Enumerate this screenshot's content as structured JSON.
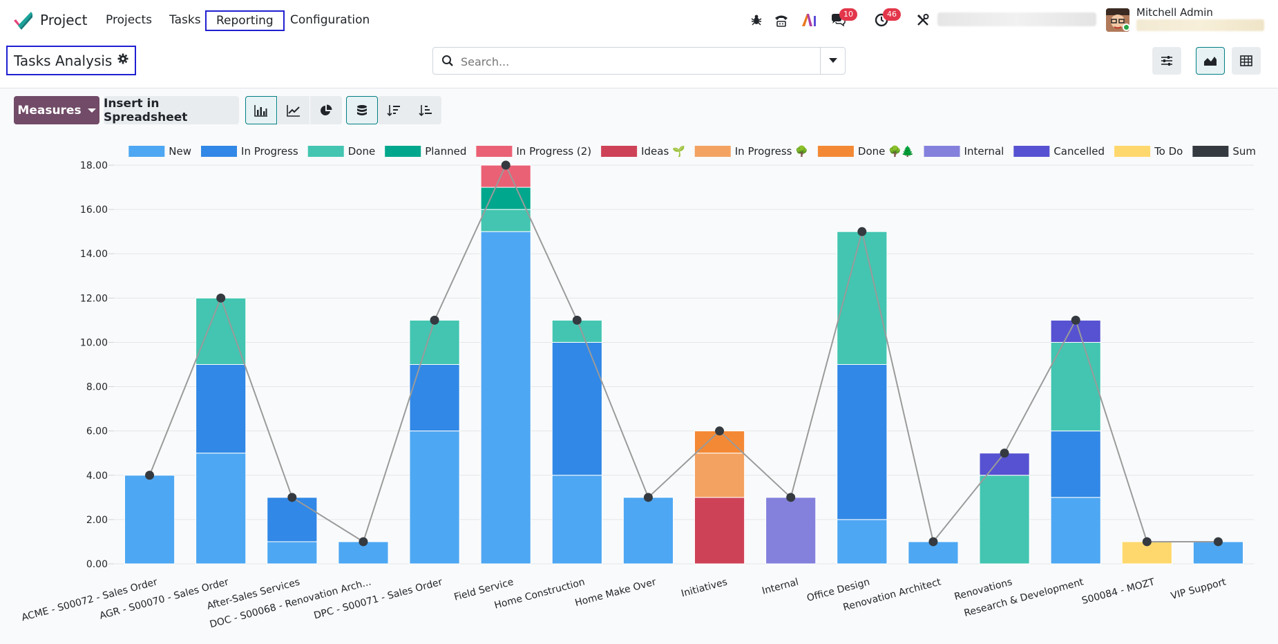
{
  "topbar": {
    "app_name": "Project",
    "menu": [
      "Projects",
      "Tasks",
      "Reporting",
      "Configuration"
    ],
    "messages_count": "10",
    "activities_count": "46",
    "user_name": "Mitchell Admin"
  },
  "control_panel": {
    "title": "Tasks Analysis",
    "search_placeholder": "Search..."
  },
  "toolbar": {
    "measures_label": "Measures",
    "spreadsheet_label": "Insert in Spreadsheet",
    "chart_modes": [
      "bar-chart-icon",
      "line-chart-icon",
      "pie-chart-icon"
    ],
    "active_mode": "bar-chart-icon",
    "stacked_active": true
  },
  "colors": {
    "accent": "#714b67",
    "active_border": "#017e84"
  },
  "chart_data": {
    "type": "bar",
    "stacked": true,
    "categories": [
      "ACME - S00072 - Sales Order",
      "AGR - S00070 - Sales Order",
      "After-Sales Services",
      "DOC - S00068 - Renovation Arch...",
      "DPC - S00071 - Sales Order",
      "Field Service",
      "Home Construction",
      "Home Make Over",
      "Initiatives",
      "Internal",
      "Office Design",
      "Renovation Architect",
      "Renovations",
      "Research & Development",
      "S00084 - MOZT",
      "VIP Support"
    ],
    "series": [
      {
        "name": "New",
        "color": "#4ea7f2",
        "values": [
          4,
          5,
          1,
          1,
          6,
          15,
          4,
          3,
          0,
          0,
          2,
          1,
          0,
          3,
          0,
          1
        ]
      },
      {
        "name": "In Progress",
        "color": "#3188e6",
        "values": [
          0,
          4,
          2,
          0,
          3,
          0,
          6,
          0,
          0,
          0,
          7,
          0,
          0,
          3,
          0,
          0
        ]
      },
      {
        "name": "Done",
        "color": "#43c5b1",
        "values": [
          0,
          3,
          0,
          0,
          2,
          1,
          1,
          0,
          0,
          0,
          6,
          0,
          4,
          4,
          0,
          0
        ]
      },
      {
        "name": "Planned",
        "color": "#00a78d",
        "values": [
          0,
          0,
          0,
          0,
          0,
          1,
          0,
          0,
          0,
          0,
          0,
          0,
          0,
          0,
          0,
          0
        ]
      },
      {
        "name": "In Progress (2)",
        "color": "#ea6175",
        "values": [
          0,
          0,
          0,
          0,
          0,
          1,
          0,
          0,
          0,
          0,
          0,
          0,
          0,
          0,
          0,
          0
        ]
      },
      {
        "name": "Ideas 🌱",
        "color": "#ce4257",
        "values": [
          0,
          0,
          0,
          0,
          0,
          0,
          0,
          0,
          3,
          0,
          0,
          0,
          0,
          0,
          0,
          0
        ]
      },
      {
        "name": "In Progress 🌳",
        "color": "#f4a261",
        "values": [
          0,
          0,
          0,
          0,
          0,
          0,
          0,
          0,
          2,
          0,
          0,
          0,
          0,
          0,
          0,
          0
        ]
      },
      {
        "name": "Done 🌳🌲",
        "color": "#f48935",
        "values": [
          0,
          0,
          0,
          0,
          0,
          0,
          0,
          0,
          1,
          0,
          0,
          0,
          0,
          0,
          0,
          0
        ]
      },
      {
        "name": "Internal",
        "color": "#8481dd",
        "values": [
          0,
          0,
          0,
          0,
          0,
          0,
          0,
          0,
          0,
          3,
          0,
          0,
          0,
          0,
          0,
          0
        ]
      },
      {
        "name": "Cancelled",
        "color": "#5752d1",
        "values": [
          0,
          0,
          0,
          0,
          0,
          0,
          0,
          0,
          0,
          0,
          0,
          0,
          1,
          1,
          0,
          0
        ]
      },
      {
        "name": "To Do",
        "color": "#ffd86d",
        "values": [
          0,
          0,
          0,
          0,
          0,
          0,
          0,
          0,
          0,
          0,
          0,
          0,
          0,
          0,
          1,
          0
        ]
      }
    ],
    "sum_series": {
      "name": "Sum",
      "color": "#343a40",
      "values": [
        4,
        12,
        3,
        1,
        11,
        18,
        11,
        3,
        6,
        3,
        15,
        1,
        5,
        11,
        1,
        1
      ]
    },
    "y_ticks": [
      "0.00",
      "2.00",
      "4.00",
      "6.00",
      "8.00",
      "10.00",
      "12.00",
      "14.00",
      "16.00",
      "18.00"
    ],
    "ylim": [
      0,
      18
    ],
    "grid": true,
    "legend_position": "top-right"
  }
}
